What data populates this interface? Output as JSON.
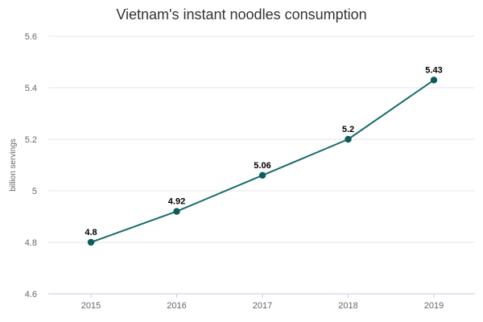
{
  "chart_data": {
    "type": "line",
    "title": "Vietnam's instant noodles consumption",
    "xlabel": "",
    "ylabel": "billion servings",
    "categories": [
      "2015",
      "2016",
      "2017",
      "2018",
      "2019"
    ],
    "series": [
      {
        "values": [
          4.8,
          4.92,
          5.06,
          5.2,
          5.43
        ],
        "data_labels": [
          "4.8",
          "4.92",
          "5.06",
          "5.2",
          "5.43"
        ]
      }
    ],
    "ylim": [
      4.6,
      5.6
    ],
    "yticks": [
      4.6,
      4.8,
      5,
      5.2,
      5.4,
      5.6
    ],
    "ytick_labels": [
      "4.6",
      "4.8",
      "5",
      "5.2",
      "5.4",
      "5.6"
    ],
    "grid": true,
    "legend": "none",
    "colors": {
      "line": "#1a6b6b",
      "marker": "#0d5c5c",
      "grid": "#e6e6ee",
      "baseline": "#c8c8e6",
      "tick_label": "#666666",
      "data_label": "#000000"
    }
  }
}
